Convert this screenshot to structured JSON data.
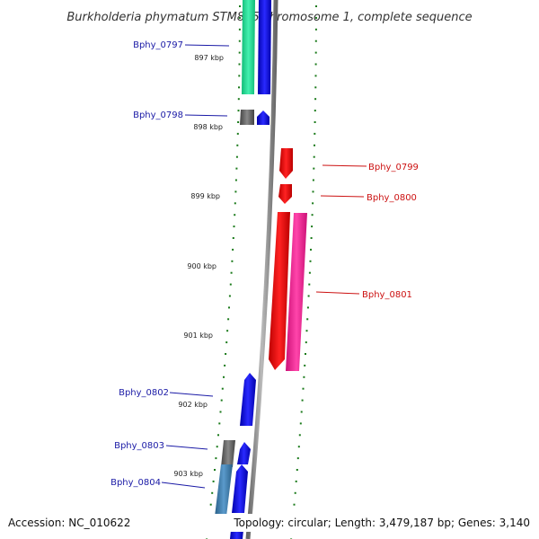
{
  "title": "Burkholderia phymatum STM815 chromosome 1, complete sequence",
  "footer": {
    "accession": "Accession: NC_010622",
    "summary": "Topology: circular; Length: 3,479,187 bp; Genes: 3,140"
  },
  "ticks": [
    "897 kbp",
    "898 kbp",
    "899 kbp",
    "900 kbp",
    "901 kbp",
    "902 kbp",
    "903 kbp"
  ],
  "colors": {
    "label_left": "#1a1aa6",
    "label_right": "#cc1111",
    "tick": "#1a7a1a",
    "backbone": "#888888"
  },
  "genes": [
    {
      "name": "Bphy_0797",
      "side": "left",
      "color_inner": "#22dd99",
      "color_outer": "#1010dd"
    },
    {
      "name": "Bphy_0798",
      "side": "left",
      "color_inner": "#666666",
      "color_outer": "#1010dd"
    },
    {
      "name": "Bphy_0799",
      "side": "right",
      "color": "#ee1111"
    },
    {
      "name": "Bphy_0800",
      "side": "right",
      "color": "#ee1111"
    },
    {
      "name": "Bphy_0801",
      "side": "right",
      "color": "#ee1111",
      "color_alt": "#ee2299"
    },
    {
      "name": "Bphy_0802",
      "side": "left",
      "color": "#1010dd"
    },
    {
      "name": "Bphy_0803",
      "side": "left",
      "color_inner": "#666666",
      "color_outer": "#1010dd"
    },
    {
      "name": "Bphy_0804",
      "side": "left",
      "color_inner": "#3a78aa",
      "color_outer": "#1010dd"
    }
  ]
}
